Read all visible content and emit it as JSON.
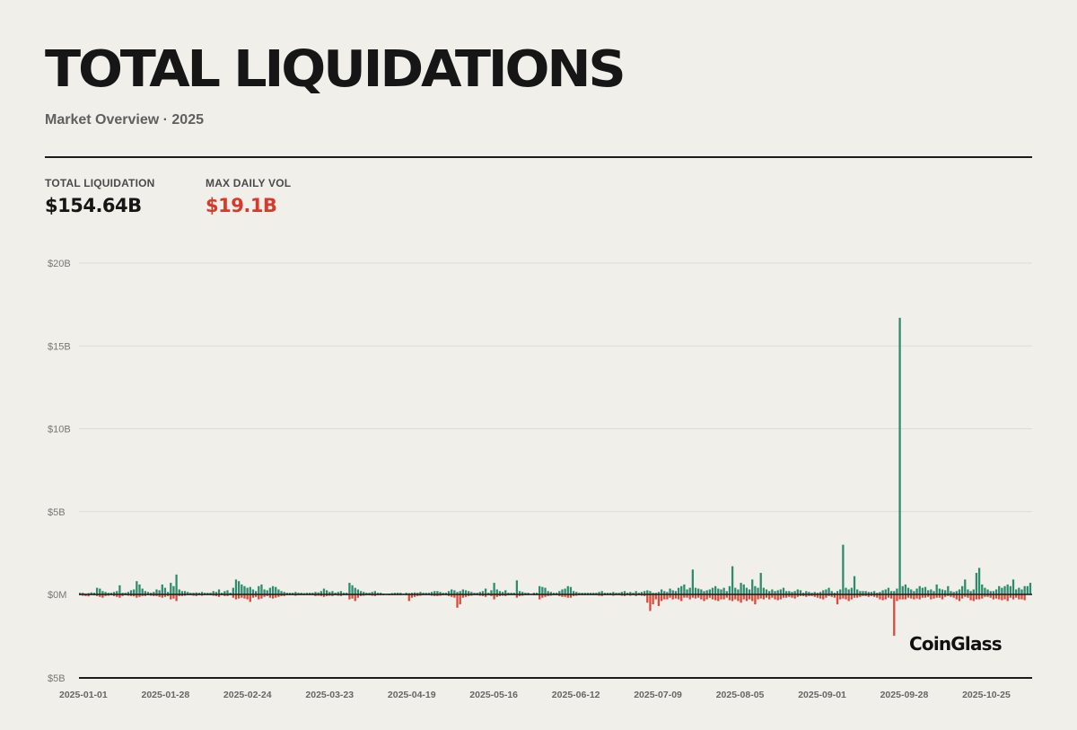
{
  "header": {
    "title": "TOTAL LIQUIDATIONS",
    "subtitle": "Market Overview · 2025"
  },
  "stats": [
    {
      "label": "TOTAL LIQUIDATION",
      "value": "$154.64B",
      "accent": "#161616"
    },
    {
      "label": "MAX DAILY VOL",
      "value": "$19.1B",
      "accent": "#d53a2c"
    }
  ],
  "watermark": "CoinGlass",
  "colors": {
    "long": "#2e8b6e",
    "short": "#d94a3a",
    "grid": "#dcdbd5",
    "axis": "#1c1c1c"
  },
  "chart_data": {
    "type": "bar",
    "title": "TOTAL LIQUIDATIONS",
    "ylim": [
      -5,
      20
    ],
    "y_unit": "B USD",
    "y_ticks": [
      {
        "value": 20,
        "label": "$20B"
      },
      {
        "value": 15,
        "label": "$15B"
      },
      {
        "value": 10,
        "label": "$10B"
      },
      {
        "value": 5,
        "label": "$5B"
      },
      {
        "value": 0,
        "label": "$0M"
      },
      {
        "value": -5,
        "label": "$5B"
      }
    ],
    "x_ticks": [
      "2025-01-01",
      "2025-01-28",
      "2025-02-24",
      "2025-03-23",
      "2025-04-19",
      "2025-05-16",
      "2025-06-12",
      "2025-07-09",
      "2025-08-05",
      "2025-09-01",
      "2025-09-28",
      "2025-10-25"
    ],
    "x_start": "2025-01-01",
    "x_end": "2025-11-17",
    "grid": true,
    "series": [
      {
        "name": "",
        "side": "long",
        "values": [
          0.1,
          0.1,
          0.05,
          0.08,
          0.12,
          0.1,
          0.4,
          0.35,
          0.2,
          0.15,
          0.1,
          0.1,
          0.15,
          0.2,
          0.55,
          0.1,
          0.1,
          0.15,
          0.25,
          0.3,
          0.8,
          0.6,
          0.35,
          0.2,
          0.15,
          0.1,
          0.15,
          0.3,
          0.25,
          0.6,
          0.4,
          0.15,
          0.7,
          0.5,
          1.2,
          0.3,
          0.2,
          0.2,
          0.15,
          0.1,
          0.1,
          0.12,
          0.1,
          0.15,
          0.1,
          0.1,
          0.1,
          0.2,
          0.15,
          0.3,
          0.1,
          0.2,
          0.25,
          0.1,
          0.4,
          0.9,
          0.8,
          0.6,
          0.5,
          0.4,
          0.45,
          0.3,
          0.2,
          0.5,
          0.6,
          0.3,
          0.25,
          0.4,
          0.5,
          0.45,
          0.3,
          0.2,
          0.15,
          0.1,
          0.1,
          0.1,
          0.15,
          0.1,
          0.1,
          0.08,
          0.1,
          0.1,
          0.1,
          0.15,
          0.12,
          0.2,
          0.35,
          0.25,
          0.15,
          0.2,
          0.1,
          0.15,
          0.2,
          0.1,
          0.1,
          0.7,
          0.55,
          0.4,
          0.3,
          0.2,
          0.15,
          0.1,
          0.1,
          0.15,
          0.2,
          0.1,
          0.1,
          0.05,
          0.05,
          0.05,
          0.08,
          0.1,
          0.1,
          0.1,
          0.05,
          0.1,
          0.08,
          0.1,
          0.12,
          0.1,
          0.15,
          0.1,
          0.1,
          0.1,
          0.15,
          0.2,
          0.2,
          0.15,
          0.1,
          0.1,
          0.2,
          0.3,
          0.25,
          0.15,
          0.2,
          0.3,
          0.25,
          0.2,
          0.15,
          0.1,
          0.1,
          0.15,
          0.2,
          0.35,
          0.1,
          0.25,
          0.7,
          0.3,
          0.2,
          0.15,
          0.25,
          0.1,
          0.1,
          0.1,
          0.85,
          0.2,
          0.15,
          0.1,
          0.1,
          0.05,
          0.1,
          0.1,
          0.5,
          0.45,
          0.4,
          0.2,
          0.15,
          0.1,
          0.1,
          0.2,
          0.3,
          0.35,
          0.5,
          0.45,
          0.2,
          0.15,
          0.1,
          0.1,
          0.1,
          0.1,
          0.1,
          0.1,
          0.1,
          0.15,
          0.2,
          0.1,
          0.1,
          0.1,
          0.15,
          0.1,
          0.1,
          0.15,
          0.2,
          0.1,
          0.15,
          0.1,
          0.2,
          0.1,
          0.15,
          0.2,
          0.25,
          0.2,
          0.1,
          0.1,
          0.15,
          0.3,
          0.2,
          0.15,
          0.35,
          0.25,
          0.2,
          0.4,
          0.5,
          0.6,
          0.3,
          0.4,
          1.5,
          0.4,
          0.35,
          0.3,
          0.2,
          0.25,
          0.3,
          0.4,
          0.5,
          0.35,
          0.3,
          0.4,
          0.2,
          0.5,
          1.7,
          0.4,
          0.3,
          0.7,
          0.6,
          0.4,
          0.3,
          0.9,
          0.5,
          0.4,
          1.3,
          0.4,
          0.3,
          0.2,
          0.3,
          0.2,
          0.25,
          0.3,
          0.4,
          0.2,
          0.2,
          0.15,
          0.2,
          0.3,
          0.25,
          0.1,
          0.2,
          0.15,
          0.1,
          0.15,
          0.1,
          0.15,
          0.25,
          0.3,
          0.4,
          0.2,
          0.1,
          0.2,
          0.3,
          3.0,
          0.4,
          0.3,
          0.4,
          1.1,
          0.3,
          0.2,
          0.2,
          0.2,
          0.15,
          0.15,
          0.2,
          0.1,
          0.15,
          0.25,
          0.3,
          0.4,
          0.2,
          0.2,
          0.35,
          16.7,
          0.5,
          0.6,
          0.4,
          0.3,
          0.2,
          0.35,
          0.5,
          0.4,
          0.45,
          0.25,
          0.3,
          0.2,
          0.6,
          0.35,
          0.3,
          0.25,
          0.5,
          0.2,
          0.15,
          0.2,
          0.3,
          0.5,
          0.9,
          0.3,
          0.2,
          0.3,
          1.3,
          1.6,
          0.6,
          0.4,
          0.3,
          0.2,
          0.2,
          0.3,
          0.5,
          0.4,
          0.5,
          0.6,
          0.5,
          0.9,
          0.3,
          0.4,
          0.3,
          0.5,
          0.5,
          0.7
        ]
      },
      {
        "name": "",
        "side": "short",
        "values": [
          0.05,
          0.08,
          0.1,
          0.12,
          0.05,
          0.06,
          0.1,
          0.15,
          0.2,
          0.1,
          0.08,
          0.05,
          0.1,
          0.15,
          0.2,
          0.1,
          0.05,
          0.08,
          0.1,
          0.12,
          0.2,
          0.15,
          0.1,
          0.1,
          0.05,
          0.08,
          0.1,
          0.1,
          0.15,
          0.2,
          0.15,
          0.1,
          0.3,
          0.25,
          0.4,
          0.1,
          0.1,
          0.08,
          0.05,
          0.05,
          0.08,
          0.1,
          0.05,
          0.08,
          0.05,
          0.05,
          0.05,
          0.08,
          0.1,
          0.15,
          0.05,
          0.1,
          0.1,
          0.05,
          0.2,
          0.3,
          0.25,
          0.2,
          0.25,
          0.3,
          0.45,
          0.2,
          0.15,
          0.3,
          0.25,
          0.15,
          0.1,
          0.2,
          0.25,
          0.2,
          0.15,
          0.1,
          0.1,
          0.05,
          0.05,
          0.05,
          0.08,
          0.05,
          0.05,
          0.05,
          0.05,
          0.05,
          0.05,
          0.1,
          0.08,
          0.1,
          0.15,
          0.1,
          0.08,
          0.1,
          0.05,
          0.08,
          0.1,
          0.05,
          0.05,
          0.3,
          0.25,
          0.4,
          0.2,
          0.1,
          0.08,
          0.05,
          0.05,
          0.08,
          0.1,
          0.05,
          0.05,
          0.05,
          0.03,
          0.05,
          0.05,
          0.05,
          0.05,
          0.05,
          0.03,
          0.05,
          0.4,
          0.2,
          0.15,
          0.1,
          0.08,
          0.05,
          0.05,
          0.05,
          0.08,
          0.1,
          0.1,
          0.08,
          0.05,
          0.05,
          0.1,
          0.15,
          0.2,
          0.8,
          0.6,
          0.2,
          0.15,
          0.1,
          0.08,
          0.05,
          0.05,
          0.08,
          0.1,
          0.15,
          0.05,
          0.1,
          0.3,
          0.15,
          0.1,
          0.08,
          0.1,
          0.05,
          0.05,
          0.05,
          0.2,
          0.1,
          0.08,
          0.05,
          0.05,
          0.03,
          0.05,
          0.05,
          0.3,
          0.2,
          0.15,
          0.1,
          0.08,
          0.05,
          0.05,
          0.1,
          0.15,
          0.15,
          0.2,
          0.2,
          0.1,
          0.08,
          0.05,
          0.05,
          0.05,
          0.05,
          0.05,
          0.05,
          0.05,
          0.08,
          0.1,
          0.05,
          0.05,
          0.05,
          0.08,
          0.05,
          0.05,
          0.08,
          0.1,
          0.05,
          0.08,
          0.05,
          0.1,
          0.05,
          0.08,
          0.1,
          0.5,
          1.0,
          0.6,
          0.3,
          0.7,
          0.4,
          0.3,
          0.3,
          0.2,
          0.3,
          0.25,
          0.3,
          0.4,
          0.2,
          0.2,
          0.3,
          0.2,
          0.25,
          0.2,
          0.3,
          0.4,
          0.3,
          0.2,
          0.3,
          0.35,
          0.4,
          0.3,
          0.3,
          0.2,
          0.35,
          0.4,
          0.3,
          0.4,
          0.5,
          0.3,
          0.4,
          0.3,
          0.4,
          0.6,
          0.3,
          0.25,
          0.3,
          0.2,
          0.3,
          0.2,
          0.3,
          0.35,
          0.3,
          0.2,
          0.2,
          0.15,
          0.2,
          0.25,
          0.15,
          0.1,
          0.1,
          0.15,
          0.1,
          0.1,
          0.15,
          0.2,
          0.25,
          0.3,
          0.2,
          0.1,
          0.15,
          0.2,
          0.6,
          0.3,
          0.25,
          0.3,
          0.4,
          0.3,
          0.2,
          0.2,
          0.15,
          0.1,
          0.1,
          0.15,
          0.1,
          0.15,
          0.2,
          0.3,
          0.35,
          0.3,
          0.2,
          0.25,
          2.5,
          0.4,
          0.3,
          0.3,
          0.3,
          0.2,
          0.25,
          0.3,
          0.25,
          0.3,
          0.2,
          0.2,
          0.15,
          0.3,
          0.25,
          0.2,
          0.2,
          0.3,
          0.15,
          0.1,
          0.15,
          0.2,
          0.3,
          0.4,
          0.25,
          0.15,
          0.2,
          0.35,
          0.4,
          0.3,
          0.3,
          0.25,
          0.15,
          0.15,
          0.2,
          0.3,
          0.25,
          0.3,
          0.35,
          0.3,
          0.4,
          0.2,
          0.3,
          0.2,
          0.3,
          0.3,
          0.35
        ]
      }
    ]
  }
}
